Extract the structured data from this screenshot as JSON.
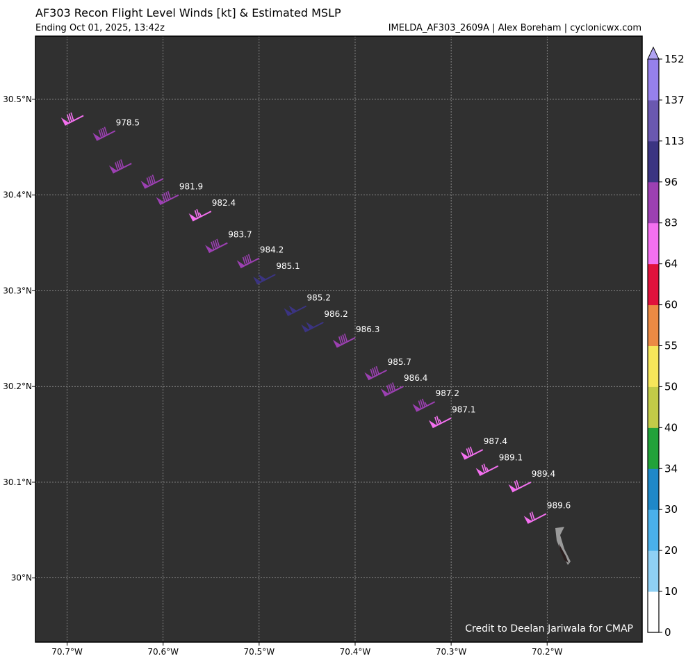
{
  "header": {
    "title": "AF303 Recon Flight Level Winds [kt] & Estimated MSLP",
    "subtitle_left": "Ending Oct 01, 2025, 13:42z",
    "subtitle_right": "IMELDA_AF303_2609A | Alex Boreham | cyclonicwx.com"
  },
  "map": {
    "background_color": "#303030",
    "lon_range": [
      -70.733,
      -70.101
    ],
    "lat_range": [
      29.933,
      30.566
    ],
    "lon_ticks": [
      {
        "value": -70.7,
        "label": "70.7°W"
      },
      {
        "value": -70.6,
        "label": "70.6°W"
      },
      {
        "value": -70.5,
        "label": "70.5°W"
      },
      {
        "value": -70.4,
        "label": "70.4°W"
      },
      {
        "value": -70.3,
        "label": "70.3°W"
      },
      {
        "value": -70.2,
        "label": "70.2°W"
      }
    ],
    "lat_ticks": [
      {
        "value": 30.5,
        "label": "30.5°N"
      },
      {
        "value": 30.4,
        "label": "30.4°N"
      },
      {
        "value": 30.3,
        "label": "30.3°N"
      },
      {
        "value": 30.2,
        "label": "30.2°N"
      },
      {
        "value": 30.1,
        "label": "30.1°N"
      },
      {
        "value": 30.0,
        "label": "30°N"
      }
    ],
    "grid": true,
    "credit": "Credit to Deelan Jariwala for CMAP",
    "aircraft_icon": "plane-icon",
    "observations": [
      {
        "lon": -70.683,
        "lat": 30.483,
        "wind_kt": 80,
        "mslp": ""
      },
      {
        "lon": -70.65,
        "lat": 30.467,
        "wind_kt": 90,
        "mslp": "978.5"
      },
      {
        "lon": -70.633,
        "lat": 30.433,
        "wind_kt": 90,
        "mslp": ""
      },
      {
        "lon": -70.6,
        "lat": 30.417,
        "wind_kt": 90,
        "mslp": ""
      },
      {
        "lon": -70.584,
        "lat": 30.4,
        "wind_kt": 90,
        "mslp": "981.9"
      },
      {
        "lon": -70.55,
        "lat": 30.383,
        "wind_kt": 75,
        "mslp": "982.4"
      },
      {
        "lon": -70.533,
        "lat": 30.35,
        "wind_kt": 90,
        "mslp": "983.7"
      },
      {
        "lon": -70.5,
        "lat": 30.334,
        "wind_kt": 90,
        "mslp": "984.2"
      },
      {
        "lon": -70.483,
        "lat": 30.317,
        "wind_kt": 100,
        "mslp": "985.1"
      },
      {
        "lon": -70.451,
        "lat": 30.284,
        "wind_kt": 100,
        "mslp": "985.2"
      },
      {
        "lon": -70.433,
        "lat": 30.267,
        "wind_kt": 100,
        "mslp": "986.2"
      },
      {
        "lon": -70.4,
        "lat": 30.251,
        "wind_kt": 90,
        "mslp": "986.3"
      },
      {
        "lon": -70.367,
        "lat": 30.217,
        "wind_kt": 90,
        "mslp": "985.7"
      },
      {
        "lon": -70.35,
        "lat": 30.2,
        "wind_kt": 90,
        "mslp": "986.4"
      },
      {
        "lon": -70.317,
        "lat": 30.184,
        "wind_kt": 85,
        "mslp": "987.2"
      },
      {
        "lon": -70.3,
        "lat": 30.167,
        "wind_kt": 75,
        "mslp": "987.1"
      },
      {
        "lon": -70.267,
        "lat": 30.134,
        "wind_kt": 80,
        "mslp": "987.4"
      },
      {
        "lon": -70.251,
        "lat": 30.117,
        "wind_kt": 75,
        "mslp": "989.1"
      },
      {
        "lon": -70.217,
        "lat": 30.1,
        "wind_kt": 70,
        "mslp": "989.4"
      },
      {
        "lon": -70.201,
        "lat": 30.067,
        "wind_kt": 70,
        "mslp": "989.6"
      }
    ]
  },
  "colorbar": {
    "levels": [
      0,
      10,
      20,
      30,
      34,
      40,
      50,
      55,
      60,
      64,
      83,
      96,
      113,
      137,
      152
    ],
    "labels": [
      "0",
      "10",
      "20",
      "30",
      "34",
      "40",
      "50",
      "55",
      "60",
      "64",
      "83",
      "96",
      "113",
      "137",
      "152"
    ],
    "colors": [
      "#ffffff",
      "#8fd0f4",
      "#4ab0ea",
      "#1f88c8",
      "#22a23a",
      "#c2cb48",
      "#f6e65a",
      "#ec8a44",
      "#e0123c",
      "#f470f0",
      "#9c40b2",
      "#3b3482",
      "#6a58b0",
      "#9680ec"
    ],
    "extend_color": "#b0a2f2"
  }
}
